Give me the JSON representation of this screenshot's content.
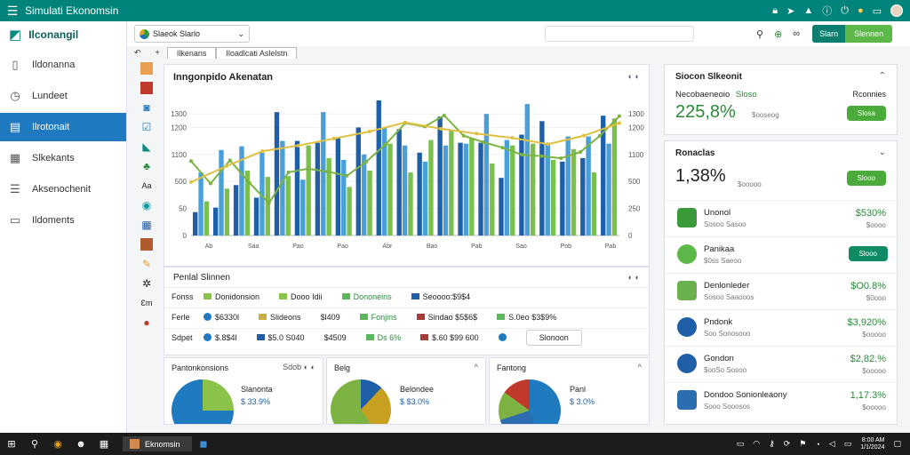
{
  "app": {
    "title": "Simulati Ekonomsin"
  },
  "topbar_icons": [
    "lock-icon",
    "rocket-icon",
    "alert-icon",
    "info-icon",
    "power-icon",
    "notification-icon",
    "window-icon"
  ],
  "sidebar": {
    "brand": "Ilconangil",
    "items": [
      {
        "label": "Ildonanna",
        "icon": "dashboard-icon",
        "active": false
      },
      {
        "label": "Lundeet",
        "icon": "clock-icon",
        "active": false
      },
      {
        "label": "Ilrotonait",
        "icon": "card-icon",
        "active": true
      },
      {
        "label": "Slkekants",
        "icon": "report-icon",
        "active": false
      },
      {
        "label": "Aksenochenit",
        "icon": "document-icon",
        "active": false
      },
      {
        "label": "Ildoments",
        "icon": "folder-icon",
        "active": false
      }
    ]
  },
  "toolbar": {
    "selector_label": "Slaeok Slarlo",
    "search_placeholder": "",
    "icons": [
      "user-icon",
      "add-user-icon",
      "link-icon"
    ],
    "btn_primary": "Slarn",
    "btn_secondary": "Slennen"
  },
  "tabs": {
    "back": "↶",
    "plus": "+",
    "items": [
      "Ilkenans",
      "Iloadlcati Aslelstn"
    ]
  },
  "main_chart": {
    "title": "Inngonpido Akenatan",
    "controls": "◐  ◐"
  },
  "chart_data": {
    "type": "bar",
    "title": "Inngonpido Akenatan",
    "ylim": [
      0,
      1300
    ],
    "yticks": [
      "0",
      "50",
      "500",
      "1100",
      "1200",
      "1300"
    ],
    "yticks_right": [
      "0",
      "250",
      "500",
      "1100",
      "1200",
      "1300"
    ],
    "xtick_labels": [
      "Ab",
      "Saa",
      "Pao",
      "Pao",
      "Abr",
      "Bao",
      "Pab",
      "Sao",
      "Pob",
      "Pab"
    ],
    "groups": [
      [
        260,
        700,
        380
      ],
      [
        310,
        950,
        520
      ],
      [
        560,
        990,
        720
      ],
      [
        420,
        920,
        650
      ],
      [
        1370,
        1050,
        660
      ],
      [
        1050,
        620,
        1000
      ],
      [
        1030,
        1370,
        860
      ],
      [
        1080,
        840,
        540
      ],
      [
        1200,
        900,
        720
      ],
      [
        1500,
        1200,
        1020
      ],
      [
        1180,
        1000,
        700
      ],
      [
        920,
        820,
        1060
      ],
      [
        1320,
        1000,
        1170
      ],
      [
        1030,
        1020,
        1080
      ],
      [
        1030,
        1350,
        800
      ],
      [
        640,
        1060,
        1000
      ],
      [
        1120,
        1460,
        1020
      ],
      [
        1270,
        1030,
        840
      ],
      [
        820,
        1100,
        960
      ],
      [
        860,
        1100,
        700
      ],
      [
        1330,
        1020,
        1300
      ]
    ],
    "bar_colors": [
      "#1f5fa8",
      "#4a9fd8",
      "#7bbf4d"
    ],
    "line": {
      "color": "#7cb342",
      "values": [
        1060,
        740,
        1070,
        750,
        460,
        900,
        950,
        910,
        850,
        1050,
        1300,
        1600,
        1550,
        1710,
        1420,
        1330,
        1250,
        1150,
        1130,
        1100,
        1190,
        1420,
        1700
      ]
    },
    "line2": {
      "color": "#e0c040",
      "values": [
        760,
        990,
        1200,
        1280,
        1380,
        1480,
        1610,
        1520,
        1450,
        1390,
        1300,
        1420,
        1600
      ]
    }
  },
  "table": {
    "title": "Penlal Slinnen",
    "ctl": "◐  ◐",
    "rows": [
      {
        "label": "Fonss",
        "cells": [
          {
            "shape": "sq",
            "color": "#8bc34a",
            "text": "Donidonsion"
          },
          {
            "shape": "sq",
            "color": "#8bc34a",
            "text": "Dooo Idii"
          },
          {
            "shape": "sq",
            "color": "#5cb85c",
            "text": "Dononeins",
            "green": true
          },
          {
            "shape": "sq",
            "color": "#1f5fa8",
            "text": "Seoooo:$9$4"
          }
        ]
      },
      {
        "label": "Ferle",
        "cells": [
          {
            "shape": "dot",
            "color": "#1f7ac0",
            "text": "$6330l"
          },
          {
            "shape": "sq",
            "color": "#c8b040",
            "text": "Slideons"
          },
          {
            "shape": "txt",
            "color": "",
            "text": "$l409"
          },
          {
            "shape": "sq",
            "color": "#5cb85c",
            "text": "Fonjins",
            "green": true
          },
          {
            "shape": "sq",
            "color": "#a83a3a",
            "text": "Sindao $5$6$"
          },
          {
            "shape": "sq",
            "color": "#5cb85c",
            "text": "S.0eo $3$9%"
          }
        ]
      },
      {
        "label": "Sdpet",
        "cells": [
          {
            "shape": "dot",
            "color": "#1f7ac0",
            "text": "$.8$4l"
          },
          {
            "shape": "sq",
            "color": "#1f5fa8",
            "text": "$5.0 S040"
          },
          {
            "shape": "txt",
            "color": "",
            "text": "$4509"
          },
          {
            "shape": "sq",
            "color": "#5cb85c",
            "text": "Ds 6%",
            "green": true
          },
          {
            "shape": "sq",
            "color": "#a83a3a",
            "text": "$.60 $99 600"
          },
          {
            "shape": "dot",
            "color": "#1f7ac0",
            "text": ""
          }
        ]
      }
    ],
    "button": "Slonoon"
  },
  "mini_panels": [
    {
      "title": "Pantonkonsions",
      "ctl": "Sdob ◐ ◐",
      "label": "Slanonta",
      "value": "$ 33.9%",
      "pie": [
        [
          "#8bc34a",
          0,
          25
        ],
        [
          "#1f7ac0",
          25,
          100
        ]
      ]
    },
    {
      "title": "Belg",
      "ctl": "^",
      "label": "Belondee",
      "value": "$ $3.0%",
      "pie": [
        [
          "#1f5fa8",
          0,
          12
        ],
        [
          "#c8a020",
          12,
          40
        ],
        [
          "#7cb342",
          40,
          100
        ]
      ]
    },
    {
      "title": "Fantong",
      "ctl": "^",
      "label": "Panl",
      "value": "$ 3.0%",
      "pie": [
        [
          "#1f7ac0",
          0,
          45
        ],
        [
          "#2e6eb0",
          45,
          70
        ],
        [
          "#7cb342",
          70,
          85
        ],
        [
          "#c0392b",
          85,
          100
        ]
      ]
    }
  ],
  "right_cards": {
    "summary": {
      "title": "Siocon Slkeonit",
      "label": "Necobaeneoio",
      "label_tag": "Sloso",
      "value": "225,8%",
      "sub": "$ooseog",
      "side_label": "Rconnies",
      "pill": "Slosa"
    },
    "detail": {
      "title": "Ronaclas",
      "value": "1,38%",
      "sub": "$ooooo",
      "pill": "Slooo",
      "items": [
        {
          "name": "Unonol",
          "sub": "Sosoo Sasoo",
          "value": "$530%",
          "sub2": "$oooo",
          "icon_color": "#3a9a3a",
          "pill": ""
        },
        {
          "name": "Panikaa",
          "sub": "$0ss Saeoo",
          "value": "",
          "sub2": "",
          "icon_color": "#5cb848",
          "pill": "Slooo"
        },
        {
          "name": "Denlonleder",
          "sub": "Sosoo Saaooos",
          "value": "$O0.8%",
          "sub2": "$0ooo",
          "icon_color": "#6ab04c",
          "pill": ""
        },
        {
          "name": "Pndonk",
          "sub": "Soo Sonosooo",
          "value": "$3,920%",
          "sub2": "$ooooo",
          "icon_color": "#1f5fa8",
          "pill": ""
        },
        {
          "name": "Gondon",
          "sub": "$ooSo Sosoo",
          "value": "$2,82.%",
          "sub2": "$ooooo",
          "icon_color": "#1f5fa8",
          "pill": ""
        },
        {
          "name": "Dondoo Sonionleaony",
          "sub": "Sooo Sooosos",
          "value": "1,17.3%",
          "sub2": "$ooooo",
          "icon_color": "#2a6eb0",
          "pill": ""
        }
      ]
    }
  },
  "taskbar": {
    "app_label": "Eknomsin",
    "clock_time": "8:00 AM",
    "clock_date": "1/1/2024"
  }
}
